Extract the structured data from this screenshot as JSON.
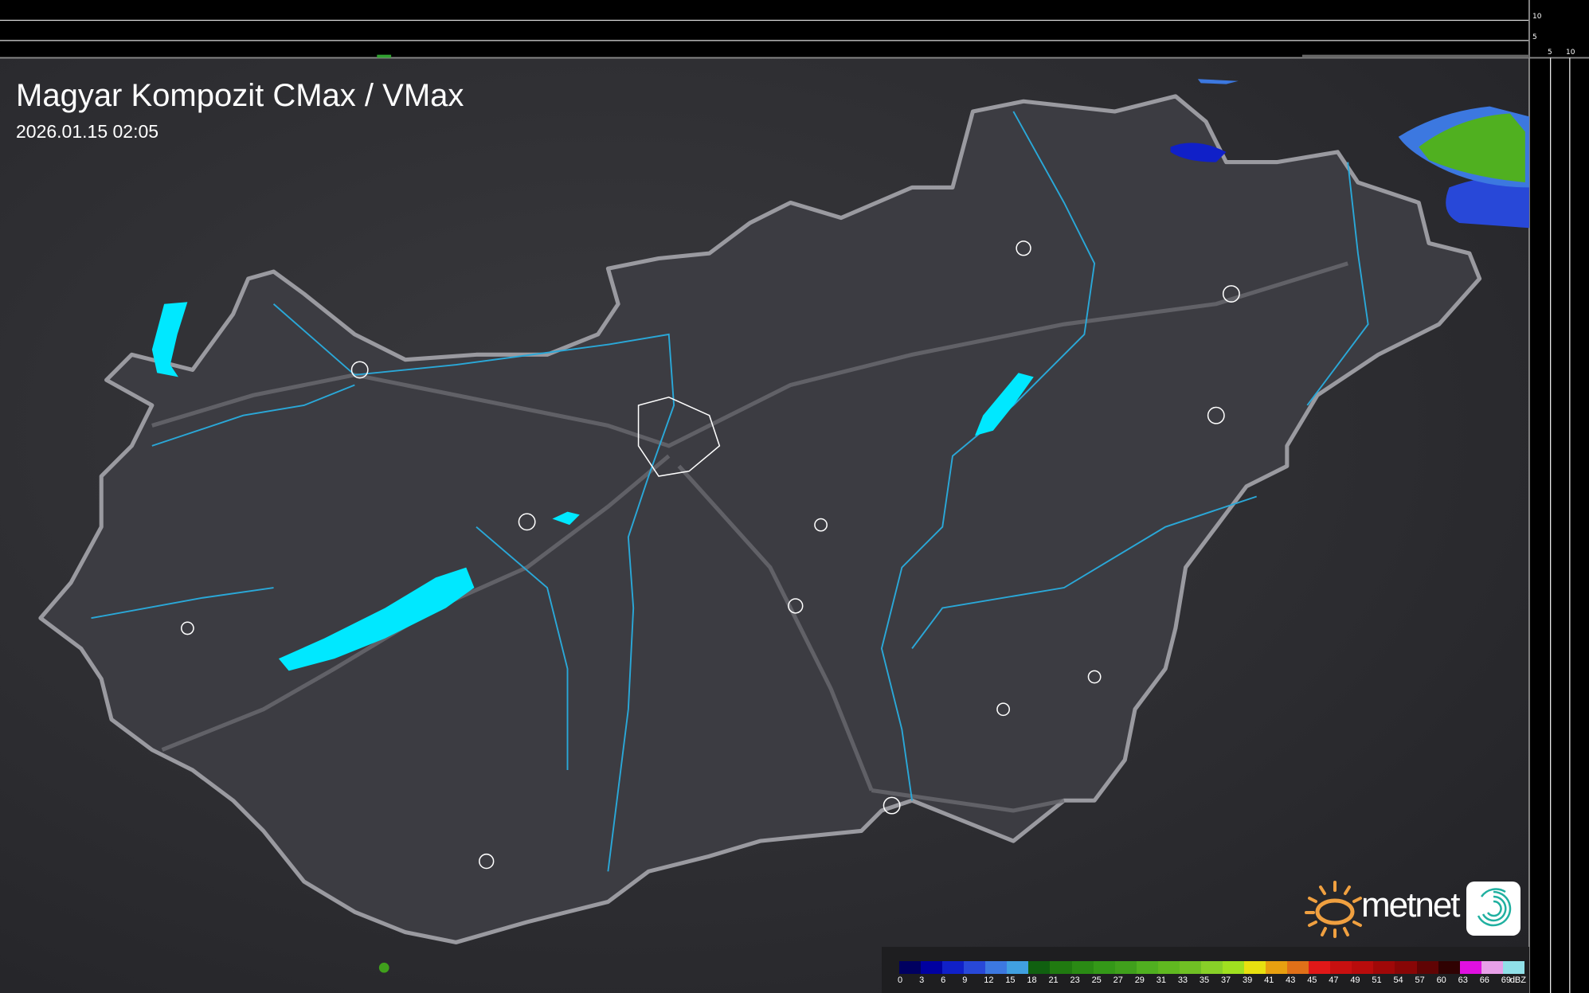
{
  "title": "Magyar Kompozit CMax / VMax",
  "timestamp": "2026.01.15 02:05",
  "side_axis": {
    "vertical_ticks": [
      "10",
      "5"
    ],
    "horizontal_ticks": [
      "5",
      "10"
    ]
  },
  "legend": {
    "unit": "dBZ",
    "labels": [
      "0",
      "3",
      "6",
      "9",
      "12",
      "15",
      "18",
      "21",
      "23",
      "25",
      "27",
      "29",
      "31",
      "33",
      "35",
      "37",
      "39",
      "41",
      "43",
      "45",
      "47",
      "49",
      "51",
      "54",
      "57",
      "60",
      "63",
      "66",
      "69"
    ],
    "colors": [
      "#000060",
      "#0000a0",
      "#1020c8",
      "#2848d8",
      "#3c78e0",
      "#40a0e0",
      "#106010",
      "#207a10",
      "#2a8a14",
      "#349818",
      "#40a01c",
      "#50b020",
      "#60b820",
      "#70c024",
      "#88d028",
      "#a0e020",
      "#e8e010",
      "#e8a010",
      "#e07018",
      "#e01818",
      "#c81010",
      "#b80c0c",
      "#a00808",
      "#880606",
      "#600404",
      "#300202",
      "#e010e0",
      "#e8a0e8",
      "#90e0e8"
    ]
  },
  "logo": {
    "brand": "metnet",
    "accent": "#f0a040",
    "icon_color": "#20b0a0"
  },
  "colors": {
    "border": "#9a9aa0",
    "country_fill": "#3c3c42",
    "river": "#2aa8d8",
    "lake": "#00e8ff",
    "city": "#ffffff"
  }
}
